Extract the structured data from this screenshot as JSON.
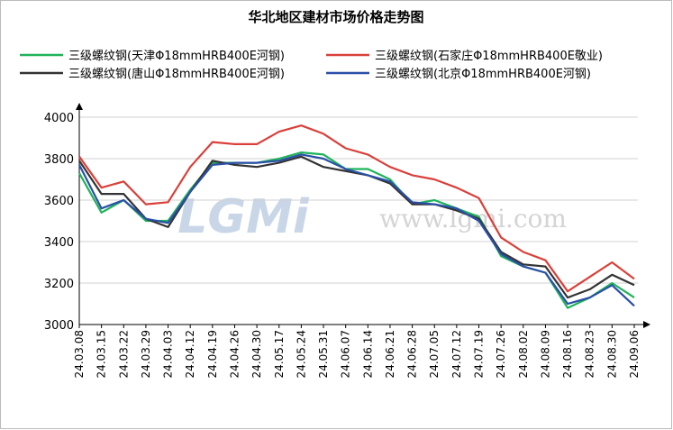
{
  "chart_data": {
    "type": "line",
    "title": "华北地区建材市场价格走势图",
    "categories": [
      "24.03.08",
      "24.03.15",
      "24.03.22",
      "24.03.29",
      "24.04.03",
      "24.04.12",
      "24.04.19",
      "24.04.26",
      "24.04.30",
      "24.05.17",
      "24.05.24",
      "24.05.31",
      "24.06.07",
      "24.06.14",
      "24.06.21",
      "24.06.28",
      "24.07.05",
      "24.07.12",
      "24.07.19",
      "24.07.26",
      "24.08.02",
      "24.08.09",
      "24.08.16",
      "24.08.23",
      "24.08.30",
      "24.09.06"
    ],
    "series": [
      {
        "name": "三级螺纹钢(天津Φ18mmHRB400E河钢)",
        "color": "#1fb35a",
        "values": [
          3730,
          3540,
          3600,
          3500,
          3500,
          3650,
          3780,
          3780,
          3780,
          3800,
          3830,
          3820,
          3750,
          3750,
          3700,
          3580,
          3600,
          3560,
          3520,
          3330,
          3280,
          3250,
          3080,
          3130,
          3200,
          3130
        ]
      },
      {
        "name": "三级螺纹钢(石家庄Φ18mmHRB400E敬业)",
        "color": "#d9403a",
        "values": [
          3810,
          3660,
          3690,
          3580,
          3590,
          3760,
          3880,
          3870,
          3870,
          3930,
          3960,
          3920,
          3850,
          3820,
          3760,
          3720,
          3700,
          3660,
          3610,
          3420,
          3350,
          3310,
          3160,
          3230,
          3300,
          3220
        ]
      },
      {
        "name": "三级螺纹钢(唐山Φ18mmHRB400E河钢)",
        "color": "#333333",
        "values": [
          3790,
          3630,
          3630,
          3510,
          3470,
          3640,
          3790,
          3770,
          3760,
          3780,
          3810,
          3760,
          3740,
          3720,
          3680,
          3580,
          3580,
          3550,
          3510,
          3350,
          3290,
          3280,
          3130,
          3170,
          3240,
          3190
        ]
      },
      {
        "name": "三级螺纹钢(北京Φ18mmHRB400E河钢)",
        "color": "#2a4fa8",
        "values": [
          3770,
          3560,
          3600,
          3510,
          3490,
          3640,
          3770,
          3780,
          3780,
          3790,
          3820,
          3800,
          3750,
          3720,
          3690,
          3590,
          3580,
          3560,
          3500,
          3340,
          3280,
          3250,
          3100,
          3130,
          3190,
          3090
        ]
      }
    ],
    "ylim": [
      3000,
      4000
    ],
    "yticks": [
      3000,
      3200,
      3400,
      3600,
      3800,
      4000
    ],
    "grid": true,
    "watermark": [
      "LGMi",
      "www.lgmi.com"
    ]
  }
}
